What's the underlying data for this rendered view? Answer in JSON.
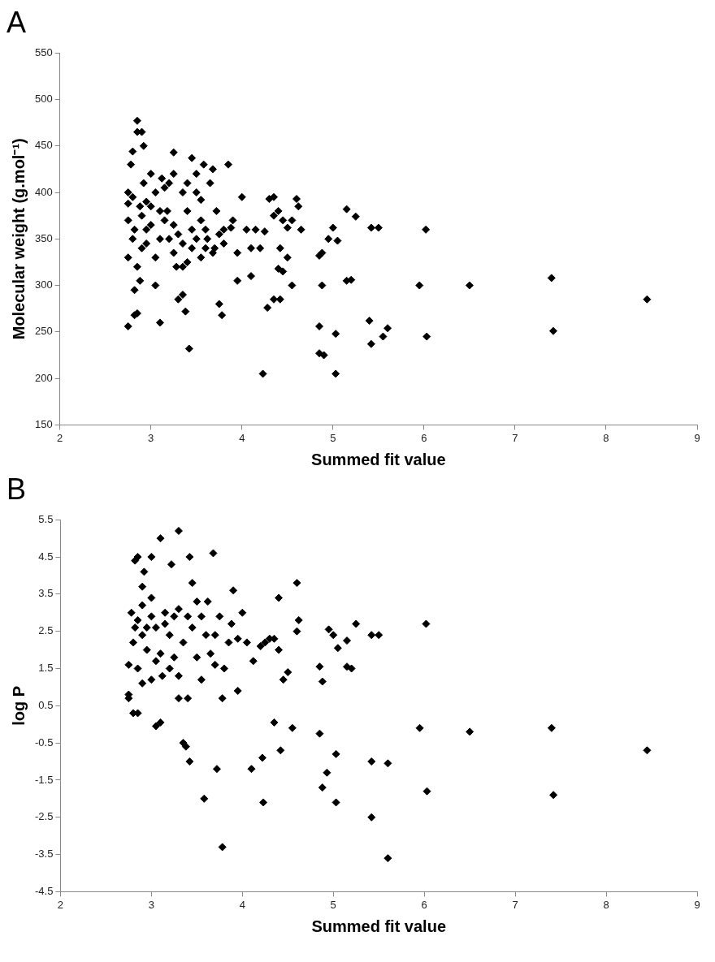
{
  "chart_data": [
    {
      "type": "scatter",
      "title": "A",
      "xlabel": "Summed fit value",
      "ylabel": "Molecular weight (g.mol⁻¹)",
      "xlim": [
        2,
        9
      ],
      "xticks": [
        2,
        3,
        4,
        5,
        6,
        7,
        8,
        9
      ],
      "ylim": [
        150,
        550
      ],
      "yticks": [
        150,
        200,
        250,
        300,
        350,
        400,
        450,
        500,
        550
      ],
      "grid": false,
      "legend": false,
      "marker": "diamond",
      "series": [
        {
          "color": "#000000",
          "x": [
            8.45,
            7.4,
            7.42,
            6.5,
            6.02,
            6.03,
            5.95,
            5.6,
            5.55,
            5.42,
            5.4,
            5.5,
            5.42,
            5.25,
            5.15,
            5.2,
            5.15,
            5.05,
            5.0,
            5.03,
            5.03,
            4.95,
            4.9,
            4.85,
            4.85,
            4.88,
            4.88,
            4.85,
            4.6,
            4.62,
            4.65,
            4.55,
            4.5,
            4.45,
            4.42,
            4.4,
            4.35,
            4.3,
            4.35,
            4.4,
            4.45,
            4.5,
            4.55,
            4.42,
            4.35,
            4.28,
            4.23,
            4.2,
            4.25,
            4.15,
            4.1,
            4.1,
            4.05,
            4.0,
            3.95,
            3.95,
            3.9,
            3.88,
            3.85,
            3.8,
            3.78,
            3.75,
            3.7,
            3.72,
            3.68,
            3.65,
            3.6,
            3.58,
            3.55,
            3.5,
            3.5,
            3.45,
            3.42,
            3.4,
            3.38,
            3.35,
            3.3,
            3.35,
            3.45,
            3.5,
            3.55,
            3.6,
            3.4,
            3.3,
            3.25,
            3.25,
            3.2,
            3.15,
            3.1,
            3.1,
            3.05,
            3.05,
            3.0,
            3.0,
            2.95,
            2.92,
            2.9,
            2.85,
            2.85,
            2.8,
            2.78,
            2.75,
            2.75,
            2.75,
            2.75,
            2.75,
            2.82,
            2.85,
            2.82,
            2.88,
            2.9,
            2.8,
            2.85,
            2.95,
            3.05,
            3.2,
            3.25,
            3.28,
            3.35,
            3.15,
            2.95,
            2.9,
            2.88,
            2.92,
            3.1,
            3.0,
            2.82,
            2.8,
            3.12,
            3.18,
            3.25,
            3.35,
            3.4,
            3.45,
            3.55,
            3.62,
            3.68,
            3.75,
            3.8
          ],
          "values": [
            285,
            308,
            251,
            300,
            360,
            245,
            300,
            254,
            245,
            237,
            262,
            362,
            362,
            374,
            382,
            306,
            305,
            348,
            362,
            248,
            205,
            350,
            225,
            227,
            256,
            300,
            335,
            332,
            393,
            385,
            360,
            370,
            362,
            370,
            340,
            380,
            395,
            393,
            375,
            318,
            315,
            330,
            300,
            285,
            285,
            276,
            205,
            340,
            358,
            360,
            340,
            310,
            360,
            395,
            335,
            305,
            370,
            362,
            430,
            360,
            268,
            280,
            340,
            380,
            425,
            410,
            360,
            430,
            392,
            400,
            420,
            437,
            232,
            410,
            272,
            290,
            285,
            320,
            340,
            350,
            370,
            340,
            380,
            355,
            443,
            420,
            410,
            405,
            380,
            260,
            300,
            330,
            420,
            385,
            360,
            450,
            465,
            477,
            465,
            444,
            430,
            400,
            388,
            370,
            330,
            256,
            268,
            270,
            295,
            305,
            340,
            350,
            320,
            345,
            400,
            350,
            335,
            320,
            400,
            370,
            390,
            375,
            385,
            410,
            350,
            365,
            360,
            395,
            415,
            380,
            365,
            345,
            325,
            360,
            330,
            350,
            335,
            355,
            345
          ]
        }
      ]
    },
    {
      "type": "scatter",
      "title": "B",
      "xlabel": "Summed fit value",
      "ylabel": "log P",
      "xlim": [
        2,
        9
      ],
      "xticks": [
        2,
        3,
        4,
        5,
        6,
        7,
        8,
        9
      ],
      "ylim": [
        -4.5,
        5.5
      ],
      "yticks": [
        -4.5,
        -3.5,
        -2.5,
        -1.5,
        -0.5,
        0.5,
        1.5,
        2.5,
        3.5,
        4.5,
        5.5
      ],
      "grid": false,
      "legend": false,
      "marker": "diamond",
      "series": [
        {
          "color": "#000000",
          "x": [
            8.45,
            7.4,
            7.42,
            6.5,
            6.02,
            6.03,
            5.95,
            5.6,
            5.6,
            5.42,
            5.42,
            5.5,
            5.42,
            5.25,
            5.2,
            5.15,
            5.15,
            5.05,
            5.0,
            4.95,
            5.03,
            5.03,
            4.93,
            4.88,
            4.85,
            4.88,
            4.85,
            4.6,
            4.62,
            4.6,
            4.55,
            4.5,
            4.45,
            4.42,
            4.35,
            4.4,
            4.35,
            4.4,
            4.3,
            4.25,
            4.22,
            4.23,
            4.1,
            4.12,
            4.2,
            4.05,
            4.0,
            3.95,
            3.9,
            3.85,
            3.78,
            3.78,
            3.72,
            3.7,
            3.68,
            3.62,
            3.58,
            3.55,
            3.5,
            3.45,
            3.42,
            3.42,
            3.4,
            3.38,
            3.35,
            3.3,
            3.3,
            3.25,
            3.22,
            3.15,
            3.1,
            3.1,
            3.05,
            3.0,
            2.92,
            2.9,
            2.85,
            2.82,
            2.78,
            2.75,
            2.75,
            2.85,
            2.8,
            2.75,
            2.8,
            2.85,
            2.9,
            2.95,
            3.0,
            2.9,
            3.05,
            3.1,
            3.2,
            3.25,
            3.35,
            3.45,
            3.55,
            3.6,
            3.65,
            3.75,
            3.8,
            3.88,
            3.95,
            3.0,
            3.15,
            3.2,
            3.3,
            3.4,
            2.95,
            3.05,
            2.85,
            2.82,
            2.9,
            3.5,
            3.7,
            3.3,
            3.12,
            3.0
          ],
          "values": [
            -0.7,
            -0.1,
            -1.9,
            -0.2,
            2.7,
            -1.8,
            -0.1,
            -1.05,
            -3.6,
            -1.0,
            -2.5,
            2.4,
            2.4,
            2.7,
            1.5,
            1.55,
            2.25,
            2.05,
            2.4,
            2.55,
            -0.8,
            -2.1,
            -1.3,
            -1.7,
            -0.25,
            1.15,
            1.55,
            3.8,
            2.8,
            2.5,
            -0.1,
            1.4,
            1.2,
            -0.7,
            0.05,
            3.4,
            2.3,
            2.0,
            2.3,
            2.2,
            -0.9,
            -2.1,
            -1.2,
            1.7,
            2.1,
            2.2,
            3.0,
            0.9,
            3.6,
            2.2,
            -3.3,
            0.7,
            -1.2,
            2.4,
            4.6,
            3.3,
            -2.0,
            1.2,
            3.3,
            3.8,
            4.5,
            -1.0,
            0.7,
            -0.6,
            -0.5,
            5.2,
            0.7,
            1.8,
            4.3,
            3.0,
            5.0,
            0.05,
            -0.05,
            4.5,
            4.1,
            3.7,
            4.5,
            4.4,
            3.0,
            0.8,
            0.7,
            0.3,
            0.3,
            1.6,
            2.2,
            2.8,
            3.2,
            2.0,
            1.2,
            1.1,
            2.6,
            1.9,
            2.4,
            2.9,
            2.2,
            2.6,
            2.9,
            2.4,
            1.9,
            2.9,
            1.5,
            2.7,
            2.3,
            3.4,
            2.7,
            1.5,
            3.1,
            2.9,
            2.6,
            1.7,
            1.5,
            2.6,
            2.4,
            1.8,
            1.6,
            1.3,
            1.3,
            2.9
          ]
        }
      ]
    }
  ]
}
